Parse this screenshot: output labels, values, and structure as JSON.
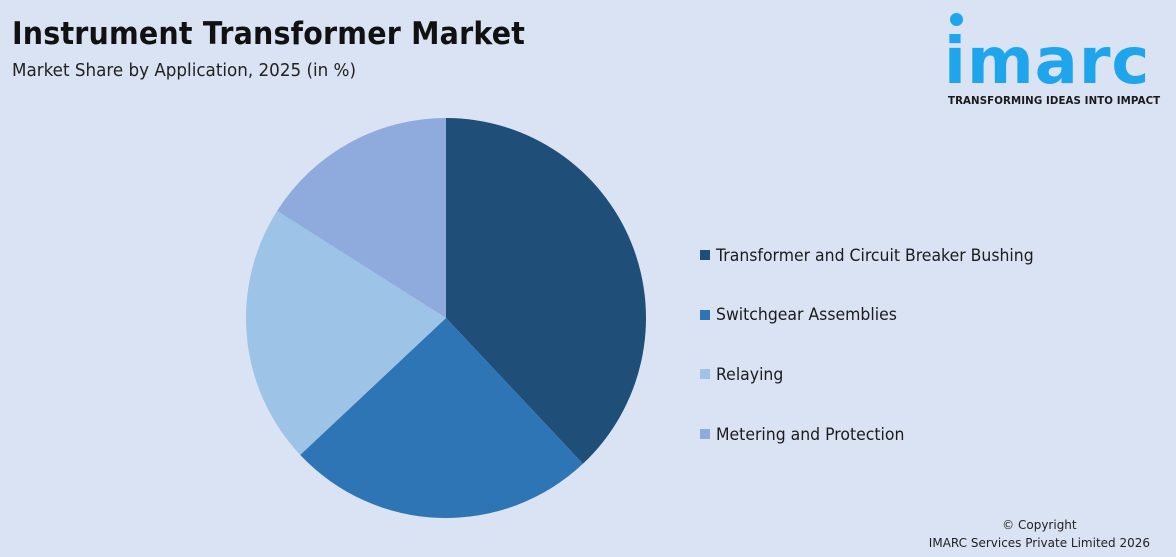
{
  "header": {
    "title": "Instrument Transformer Market",
    "subtitle": "Market Share by Application, 2025 (in %)"
  },
  "logo": {
    "wordmark": "imarc",
    "tagline": "TRANSFORMING IDEAS INTO IMPACT",
    "color": "#1fa5ec"
  },
  "chart_data": {
    "type": "pie",
    "title": "Instrument Transformer Market",
    "subtitle": "Market Share by Application, 2025 (in %)",
    "categories": [
      "Transformer and Circuit Breaker Bushing",
      "Switchgear Assemblies",
      "Relaying",
      "Metering and Protection"
    ],
    "values": [
      38,
      25,
      21,
      16
    ],
    "colors": [
      "#1f4e79",
      "#2e75b6",
      "#9dc3e6",
      "#8faadc"
    ],
    "start_angle": "12 o'clock, clockwise",
    "legend_position": "right"
  },
  "legend": {
    "items": [
      {
        "label": "Transformer and Circuit Breaker Bushing",
        "color": "#1f4e79"
      },
      {
        "label": "Switchgear Assemblies",
        "color": "#2e75b6"
      },
      {
        "label": "Relaying",
        "color": "#9dc3e6"
      },
      {
        "label": "Metering and Protection",
        "color": "#8faadc"
      }
    ]
  },
  "footer": {
    "copyright_line1": "© Copyright",
    "copyright_line2": "IMARC Services Private Limited 2026"
  }
}
